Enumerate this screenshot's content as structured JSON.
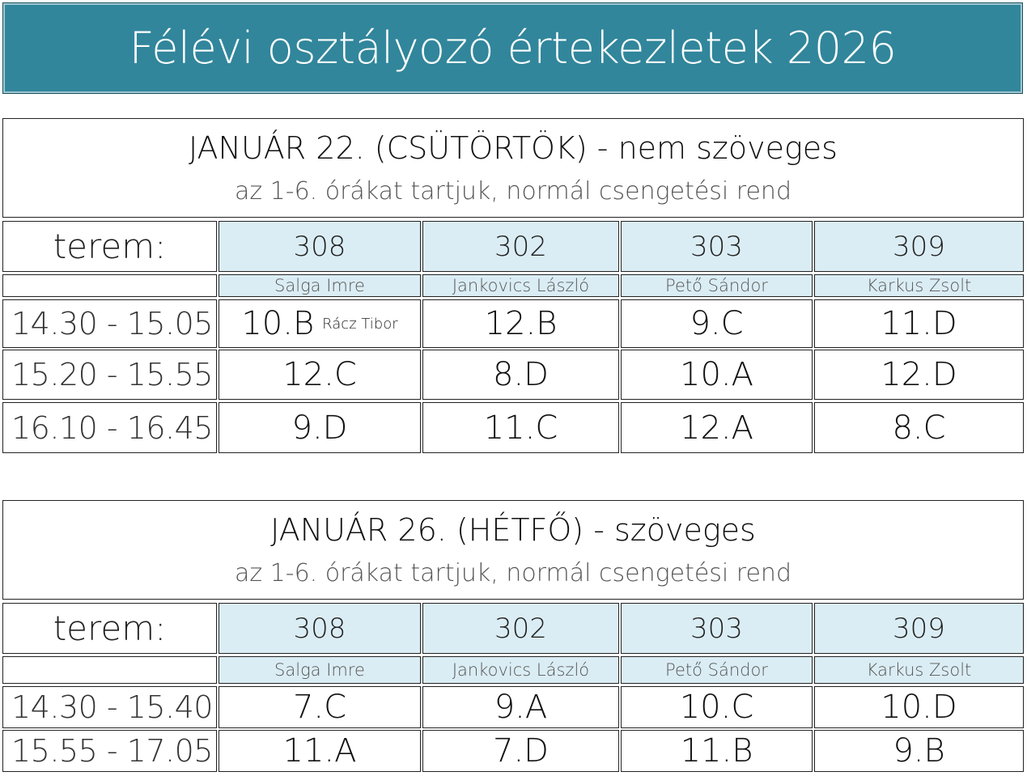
{
  "title": "Félévi osztályozó értekezletek 2026",
  "sections": [
    {
      "heading": "JANUÁR 22. (CSÜTÖRTÖK) - nem szöveges",
      "subheading": "az 1-6. órákat tartjuk, normál csengetési rend",
      "terem_label": "terem:",
      "rooms": [
        "308",
        "302",
        "303",
        "309"
      ],
      "teachers": [
        "Salga Imre",
        "Jankovics László",
        "Pető Sándor",
        "Karkus Zsolt"
      ],
      "rows": [
        {
          "time": "14.30 - 15.05",
          "classes": [
            "10.B",
            "12.B",
            "9.C",
            "11.D"
          ],
          "note": "Rácz Tibor"
        },
        {
          "time": "15.20 - 15.55",
          "classes": [
            "12.C",
            "8.D",
            "10.A",
            "12.D"
          ]
        },
        {
          "time": "16.10 - 16.45",
          "classes": [
            "9.D",
            "11.C",
            "12.A",
            "8.C"
          ]
        }
      ]
    },
    {
      "heading": "JANUÁR 26. (HÉTFŐ) - szöveges",
      "subheading": "az 1-6. órákat tartjuk, normál csengetési rend",
      "terem_label": "terem:",
      "rooms": [
        "308",
        "302",
        "303",
        "309"
      ],
      "teachers": [
        "Salga Imre",
        "Jankovics László",
        "Pető Sándor",
        "Karkus Zsolt"
      ],
      "rows": [
        {
          "time": "14.30 - 15.40",
          "classes": [
            "7.C",
            "9.A",
            "10.C",
            "10.D"
          ]
        },
        {
          "time": "15.55 - 17.05",
          "classes": [
            "11.A",
            "7.D",
            "11.B",
            "9.B"
          ]
        }
      ]
    }
  ],
  "colors": {
    "banner": "#31869b",
    "header_cells": "#dbedf4"
  }
}
